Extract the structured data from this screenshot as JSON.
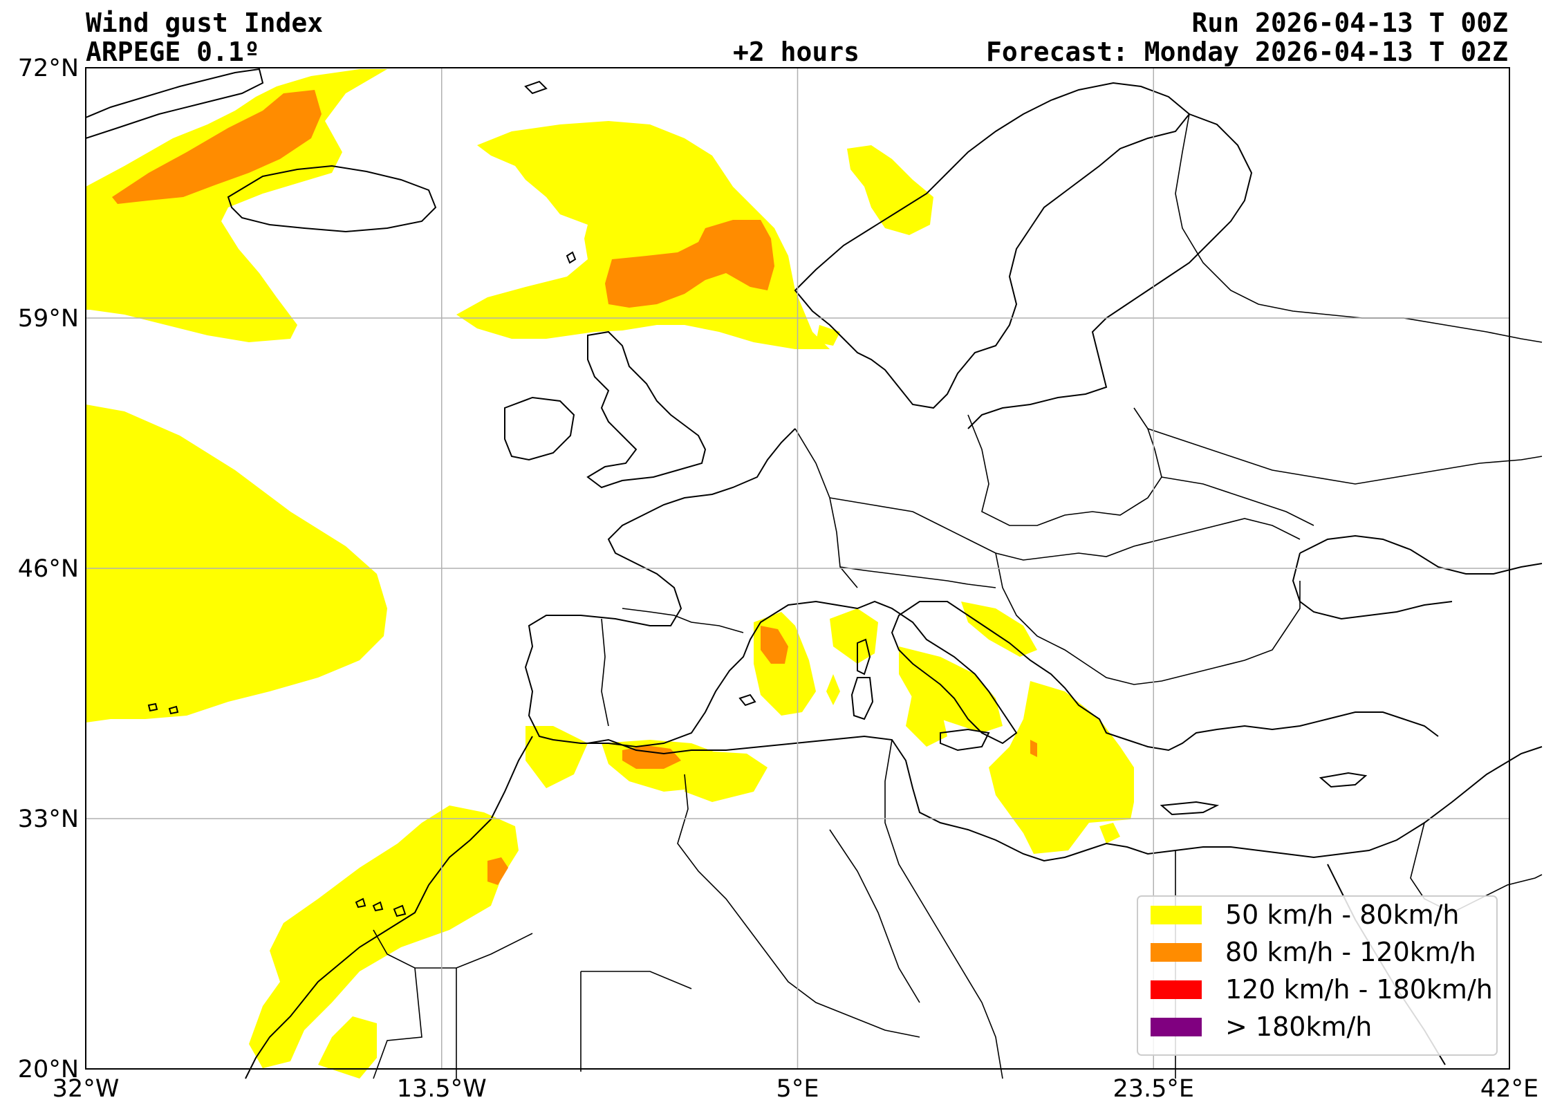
{
  "header": {
    "title": "Wind gust Index",
    "model": "ARPEGE 0.1º",
    "lead_time": "+2 hours",
    "run": "Run 2026-04-13 T 00Z",
    "forecast": "Forecast: Monday 2026-04-13 T 02Z"
  },
  "map": {
    "projection": "equirectangular",
    "lon_range": [
      -32,
      42
    ],
    "lat_range": [
      20,
      72
    ],
    "grid": true,
    "lat_ticks": [
      {
        "value": 72,
        "label": "72°N"
      },
      {
        "value": 59,
        "label": "59°N"
      },
      {
        "value": 46,
        "label": "46°N"
      },
      {
        "value": 33,
        "label": "33°N"
      },
      {
        "value": 20,
        "label": "20°N"
      }
    ],
    "lon_ticks": [
      {
        "value": -32,
        "label": "32°W"
      },
      {
        "value": -13.5,
        "label": "13.5°W"
      },
      {
        "value": 5,
        "label": "5°E"
      },
      {
        "value": 23.5,
        "label": "23.5°E"
      },
      {
        "value": 42,
        "label": "42°E"
      }
    ]
  },
  "legend": {
    "placement": "bottom-right",
    "items": [
      {
        "label": "50 km/h - 80km/h",
        "color": "#ffff00"
      },
      {
        "label": "80 km/h - 120km/h",
        "color": "#ff8c00"
      },
      {
        "label": "120 km/h - 180km/h",
        "color": "#ff0000"
      },
      {
        "label": "> 180km/h",
        "color": "#800080"
      }
    ]
  }
}
